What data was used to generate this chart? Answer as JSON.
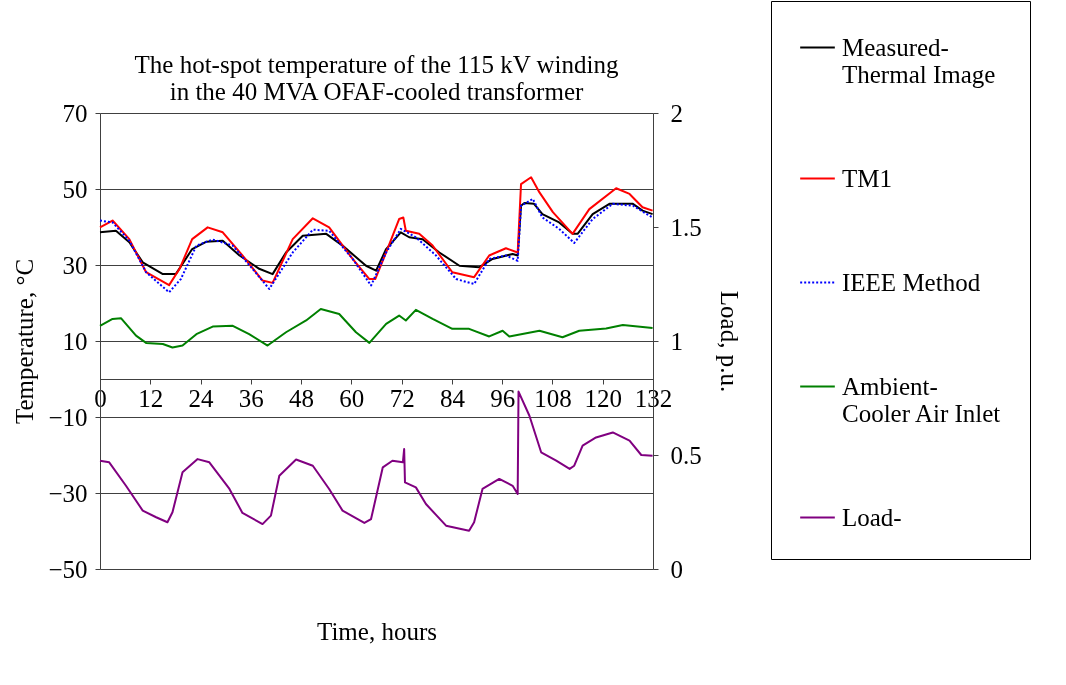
{
  "chart_data": {
    "type": "line",
    "title": "The hot-spot temperature of the 115 kV winding\nin the 40 MVA OFAF-cooled transformer",
    "xlabel": "Time, hours",
    "ylabel": "Temperature, °C",
    "y2label": "Load, p.u.",
    "xlim": [
      0,
      132
    ],
    "xticks": [
      0,
      12,
      24,
      36,
      48,
      60,
      72,
      84,
      96,
      108,
      120,
      132
    ],
    "ylim": [
      -50,
      70
    ],
    "yticks": [
      -50,
      -30,
      -10,
      10,
      30,
      50,
      70
    ],
    "y2lim": [
      0,
      2
    ],
    "y2ticks": [
      0,
      0.5,
      1,
      1.5,
      2
    ],
    "grid": "y",
    "legend": "right",
    "line_style": "solid",
    "marker": "none",
    "series": [
      {
        "name": "Measured-\nThermal Image",
        "color": "#000000",
        "x": [
          0,
          3.8,
          7,
          10.2,
          15,
          18.1,
          22,
          25.3,
          29.3,
          33.3,
          38,
          41.2,
          44.4,
          48.4,
          54,
          57.9,
          63.5,
          65.9,
          68.3,
          71.8,
          73.8,
          77,
          81,
          85.8,
          90.5,
          93.7,
          98.5,
          99.7,
          100.5,
          101.3,
          103.6,
          105.6,
          109.6,
          112.8,
          114,
          117.6,
          121.6,
          127.2,
          129.5,
          131.9
        ],
        "values": [
          38.6,
          39,
          36,
          30.7,
          27.6,
          27.6,
          34.2,
          36.1,
          36.4,
          32.5,
          29,
          27.6,
          33.3,
          37.7,
          38.2,
          35.1,
          29.8,
          28.5,
          34.2,
          38.6,
          37.3,
          36.8,
          33.3,
          29.8,
          29.4,
          31.6,
          32.9,
          32.5,
          45.6,
          46.3,
          46.1,
          43.4,
          41.2,
          38.2,
          38.2,
          43.4,
          46.1,
          46.1,
          44.3,
          43.4
        ]
      },
      {
        "name": "TM1",
        "color": "#ff0000",
        "x": [
          0,
          3,
          7,
          11,
          16.5,
          19,
          22,
          25.7,
          29.3,
          34,
          38.8,
          41.2,
          46,
          50.8,
          54.7,
          60.3,
          64.3,
          65.7,
          68.3,
          71.4,
          72.4,
          73,
          76.2,
          79.4,
          84.1,
          89.3,
          92.9,
          96.9,
          99.7,
          100.5,
          102.9,
          104.9,
          108.1,
          112.8,
          116.8,
          123.2,
          126.4,
          129.5,
          131.9
        ],
        "values": [
          39.9,
          41.7,
          36.8,
          28.1,
          24.7,
          29,
          36.8,
          39.9,
          38.6,
          32.5,
          25.9,
          25.3,
          36.8,
          42.3,
          39.9,
          31.6,
          26.3,
          26.3,
          33.3,
          42.1,
          42.5,
          39,
          38.2,
          35.1,
          28.1,
          26.8,
          32.5,
          34.4,
          33.3,
          51.3,
          53.1,
          49.1,
          43.9,
          38.2,
          44.7,
          50.2,
          48.7,
          45.2,
          44.3
        ]
      },
      {
        "name": "IEEE Method",
        "color": "#0000ff",
        "line_style": "dotted",
        "x": [
          0,
          3,
          7,
          11,
          16.5,
          19.3,
          23,
          26.9,
          31.7,
          36.4,
          40.4,
          46,
          50.8,
          54.7,
          60.3,
          64.7,
          68.3,
          71.8,
          75.4,
          80.2,
          85,
          89.3,
          92.9,
          96.9,
          99.7,
          100.5,
          103.3,
          105.6,
          109.6,
          113.2,
          117.6,
          122.4,
          127.2,
          131.9
        ],
        "values": [
          41.7,
          41.2,
          36.4,
          28.1,
          22.8,
          26.3,
          35.1,
          36.7,
          35.1,
          29,
          23.7,
          33.3,
          39.3,
          39,
          31.6,
          24.6,
          33.3,
          39.5,
          37.3,
          32.5,
          26.3,
          25,
          31.6,
          32.5,
          31.1,
          45.6,
          47.4,
          42.5,
          39.5,
          35.8,
          42.1,
          46.1,
          45.6,
          42.5
        ]
      },
      {
        "name": "Ambient-\nCooler Air Inlet",
        "color": "#008000",
        "x": [
          0,
          3,
          5,
          8.6,
          11,
          15,
          17.3,
          19.7,
          23,
          26.9,
          31.7,
          35.6,
          40,
          44.4,
          49.2,
          52.7,
          57.1,
          61.1,
          64.3,
          68.3,
          71.4,
          73,
          75.4,
          79.4,
          84.1,
          88.1,
          92.9,
          96.1,
          97.7,
          104.9,
          110.4,
          114.4,
          120.8,
          124.8,
          131.9
        ],
        "values": [
          14,
          15.8,
          16,
          11.4,
          9.5,
          9.2,
          8.3,
          8.8,
          11.8,
          13.8,
          14,
          11.8,
          8.8,
          12.3,
          15.4,
          18.4,
          17.1,
          12.3,
          9.5,
          14.5,
          16.7,
          15.4,
          18.2,
          15.8,
          13.2,
          13.2,
          11.2,
          12.7,
          11.2,
          12.7,
          11,
          12.7,
          13.3,
          14.2,
          13.4
        ]
      },
      {
        "name": "Load-",
        "color": "#800080",
        "axis": "y2",
        "x": [
          0,
          2.2,
          6.2,
          10.2,
          13.4,
          16.1,
          17.3,
          19.7,
          23.3,
          26.1,
          30.9,
          34,
          38.8,
          40.8,
          42.8,
          46.8,
          50.8,
          54.7,
          57.9,
          63.1,
          64.7,
          67.5,
          69.8,
          72.3,
          72.6,
          72.8,
          75.4,
          77.8,
          82.6,
          88.1,
          89.3,
          91.3,
          95.3,
          98.5,
          99.7,
          99.9,
          102.5,
          105.3,
          108.9,
          112.1,
          113.2,
          115.2,
          118.4,
          122.4,
          126.4,
          129.2,
          131.9
        ],
        "values": [
          0.475,
          0.468,
          0.365,
          0.256,
          0.227,
          0.205,
          0.249,
          0.424,
          0.482,
          0.468,
          0.351,
          0.246,
          0.197,
          0.234,
          0.409,
          0.48,
          0.453,
          0.351,
          0.256,
          0.202,
          0.219,
          0.446,
          0.475,
          0.468,
          0.526,
          0.38,
          0.358,
          0.285,
          0.19,
          0.168,
          0.205,
          0.351,
          0.395,
          0.365,
          0.329,
          0.778,
          0.672,
          0.512,
          0.475,
          0.439,
          0.453,
          0.541,
          0.577,
          0.599,
          0.563,
          0.5,
          0.497
        ]
      }
    ]
  }
}
